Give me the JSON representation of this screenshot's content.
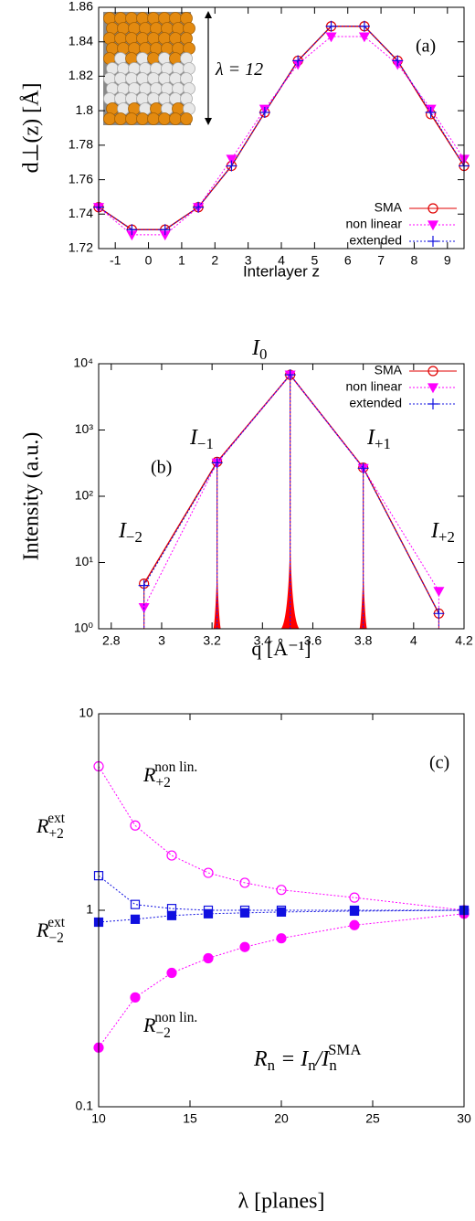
{
  "chart_data": [
    {
      "type": "line",
      "label": "(a)",
      "x_label": "Interlayer z",
      "y_label": "d⊥(z) [Å]",
      "x": [
        -1.5,
        -0.5,
        0.5,
        1.5,
        2.5,
        3.5,
        4.5,
        5.5,
        6.5,
        7.5,
        8.5,
        9.5
      ],
      "xlim": [
        -1.5,
        9.5
      ],
      "xticks": [
        -1,
        0,
        1,
        2,
        3,
        4,
        5,
        6,
        7,
        8,
        9
      ],
      "ylim": [
        1.72,
        1.86
      ],
      "yticks": [
        1.72,
        1.74,
        1.76,
        1.78,
        1.8,
        1.82,
        1.84,
        1.86
      ],
      "legend": "bottom-right",
      "annotations": [
        {
          "text": [
            "λ = 12"
          ]
        }
      ],
      "series": [
        {
          "name": "SMA",
          "color": "#e00000",
          "marker": "circle",
          "filled": false,
          "line_style": "solid",
          "values": [
            1.744,
            1.731,
            1.731,
            1.744,
            1.768,
            1.799,
            1.829,
            1.849,
            1.849,
            1.829,
            1.798,
            1.768
          ]
        },
        {
          "name": "non linear",
          "color": "#ff00ff",
          "marker": "triangle-down",
          "filled": true,
          "line_style": "dotted",
          "values": [
            1.744,
            1.728,
            1.728,
            1.744,
            1.772,
            1.801,
            1.827,
            1.843,
            1.843,
            1.827,
            1.801,
            1.772
          ]
        },
        {
          "name": "extended",
          "color": "#1010e0",
          "marker": "plus",
          "filled": false,
          "line_style": "dotted",
          "values": [
            1.744,
            1.731,
            1.731,
            1.744,
            1.768,
            1.799,
            1.829,
            1.849,
            1.849,
            1.829,
            1.799,
            1.768
          ]
        }
      ]
    },
    {
      "type": "line",
      "label": "(b)",
      "x_label": "q [Å⁻¹]",
      "y_label": "Intensity (a.u.)",
      "log_y": true,
      "stems": true,
      "x": [
        2.93,
        3.22,
        3.51,
        3.8,
        4.1
      ],
      "xlim": [
        2.75,
        4.2
      ],
      "xticks": [
        2.8,
        3,
        3.2,
        3.4,
        3.6,
        3.8,
        4,
        4.2
      ],
      "ylim": [
        1,
        10000
      ],
      "yticks": [
        {
          "value": 1,
          "label": "10⁰"
        },
        {
          "value": 10,
          "label": "10¹"
        },
        {
          "value": 100,
          "label": "10²"
        },
        {
          "value": 1000,
          "label": "10³"
        },
        {
          "value": 10000,
          "label": "10⁴"
        }
      ],
      "legend": "top-right",
      "annotations": [
        {
          "text": [
            "I",
            {
              "sub": "0"
            }
          ]
        },
        {
          "text": [
            "I",
            {
              "sub": "−1"
            }
          ]
        },
        {
          "text": [
            "I",
            {
              "sub": "+1"
            }
          ]
        },
        {
          "text": [
            "I",
            {
              "sub": "−2"
            }
          ]
        },
        {
          "text": [
            "I",
            {
              "sub": "+2"
            }
          ]
        }
      ],
      "series": [
        {
          "name": "SMA",
          "color": "#e00000",
          "marker": "circle",
          "filled": false,
          "line_style": "solid",
          "values": [
            4.8,
            330,
            6800,
            270,
            1.7
          ]
        },
        {
          "name": "non linear",
          "color": "#ff00ff",
          "marker": "triangle-down",
          "filled": true,
          "line_style": "dotted",
          "values": [
            2.1,
            320,
            6800,
            265,
            3.7
          ]
        },
        {
          "name": "extended",
          "color": "#1010e0",
          "marker": "plus",
          "filled": false,
          "line_style": "dotted",
          "values": [
            4.5,
            320,
            6800,
            265,
            1.7
          ]
        }
      ]
    },
    {
      "type": "line",
      "label": "(c)",
      "x_label": "λ [planes]",
      "log_y": true,
      "x": [
        10,
        12,
        14,
        16,
        18,
        20,
        24,
        30
      ],
      "xlim": [
        10,
        30
      ],
      "xticks": [
        10,
        15,
        20,
        25,
        30
      ],
      "ylim": [
        0.1,
        10
      ],
      "yticks": [
        0.1,
        1,
        10
      ],
      "annotations": [
        {
          "text": [
            "R",
            {
              "sub": "+2",
              "sup": "non lin."
            }
          ]
        },
        {
          "text": [
            "R",
            {
              "sub": "+2",
              "sup": "ext"
            }
          ]
        },
        {
          "text": [
            "R",
            {
              "sub": "−2",
              "sup": "ext"
            }
          ]
        },
        {
          "text": [
            "R",
            {
              "sub": "−2",
              "sup": "non lin."
            }
          ]
        },
        {
          "text": [
            "R",
            {
              "sub": "n"
            },
            " = I",
            {
              "sub": "n"
            },
            "/I",
            {
              "sub": "n",
              "sup": "SMA"
            }
          ]
        }
      ],
      "series": [
        {
          "color": "#ff00ff",
          "marker": "circle",
          "filled": false,
          "line_style": "dotted",
          "values": [
            5.4,
            2.7,
            1.9,
            1.55,
            1.38,
            1.27,
            1.16,
            1.0
          ]
        },
        {
          "color": "#ff00ff",
          "marker": "circle",
          "filled": true,
          "line_style": "dotted",
          "values": [
            0.2,
            0.36,
            0.48,
            0.57,
            0.65,
            0.72,
            0.84,
            0.96
          ]
        },
        {
          "color": "#1010e0",
          "marker": "square",
          "filled": false,
          "line_style": "dotted",
          "values": [
            1.5,
            1.07,
            1.02,
            1.0,
            1.0,
            1.0,
            1.0,
            1.0
          ]
        },
        {
          "color": "#1010e0",
          "marker": "square",
          "filled": true,
          "line_style": "dotted",
          "values": [
            0.87,
            0.9,
            0.94,
            0.96,
            0.97,
            0.98,
            0.99,
            1.0
          ]
        }
      ]
    }
  ]
}
